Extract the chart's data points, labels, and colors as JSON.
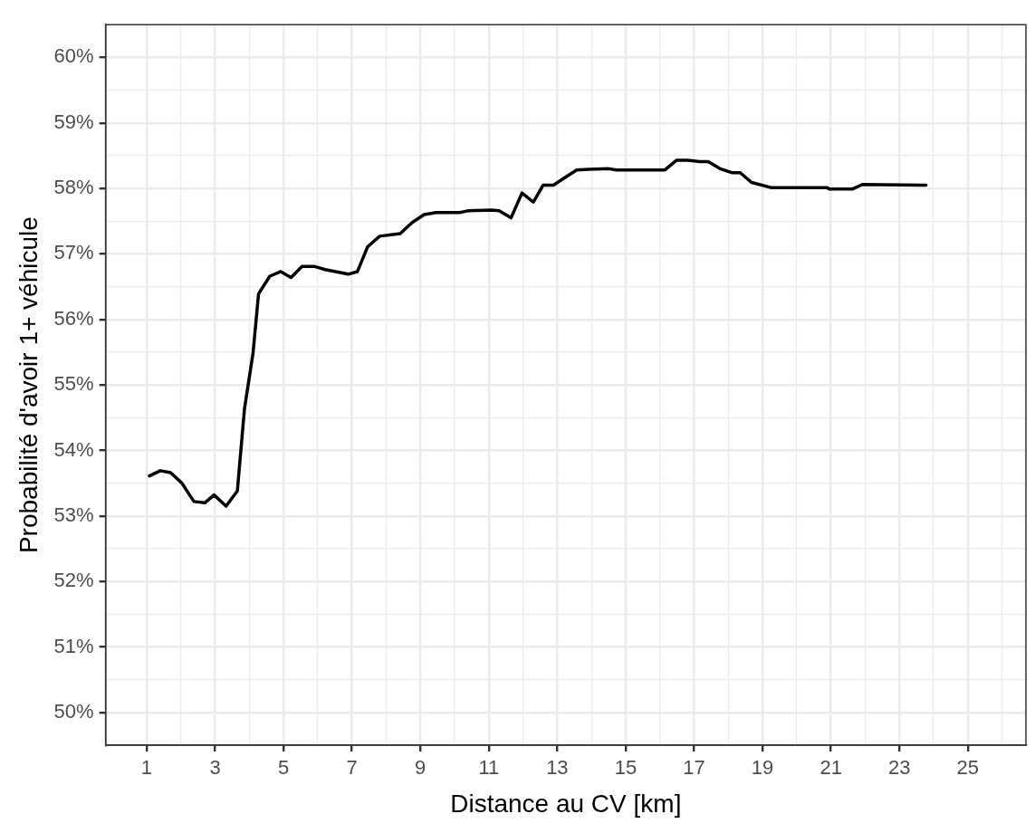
{
  "chart_data": {
    "type": "line",
    "xlabel": "Distance au CV [km]",
    "ylabel": "Probabilité d'avoir 1+ véhicule",
    "x": [
      1.08,
      1.4,
      1.7,
      2.03,
      2.38,
      2.7,
      2.97,
      3.32,
      3.65,
      3.86,
      4.11,
      4.27,
      4.6,
      4.92,
      5.22,
      5.54,
      5.89,
      6.22,
      6.89,
      7.16,
      7.46,
      7.81,
      8.41,
      8.76,
      9.11,
      9.46,
      10.14,
      10.41,
      11.08,
      11.3,
      11.65,
      11.97,
      12.3,
      12.59,
      12.89,
      13.24,
      13.57,
      13.92,
      14.51,
      14.73,
      16.14,
      16.49,
      16.81,
      17.16,
      17.41,
      17.76,
      18.1,
      18.35,
      18.68,
      19.27,
      20.89,
      20.95,
      21.62,
      21.92,
      23.78
    ],
    "series": [
      {
        "color": "#000000",
        "values": [
          53.61,
          53.69,
          53.66,
          53.5,
          53.22,
          53.2,
          53.32,
          53.15,
          53.38,
          54.64,
          55.49,
          56.39,
          56.66,
          56.73,
          56.64,
          56.81,
          56.81,
          56.76,
          56.69,
          56.73,
          57.11,
          57.27,
          57.31,
          57.48,
          57.6,
          57.63,
          57.63,
          57.66,
          57.67,
          57.66,
          57.55,
          57.93,
          57.79,
          58.05,
          58.05,
          58.17,
          58.28,
          58.29,
          58.3,
          58.28,
          58.28,
          58.43,
          58.43,
          58.41,
          58.41,
          58.3,
          58.24,
          58.24,
          58.09,
          58.01,
          58.01,
          57.99,
          57.99,
          58.06,
          58.05
        ]
      }
    ],
    "xlim": [
      -0.2,
      26.7
    ],
    "xticks": [
      1,
      {
        "value": 2,
        "label": null
      },
      3,
      {
        "value": 4,
        "label": null
      },
      5,
      {
        "value": 6,
        "label": null
      },
      7,
      {
        "value": 8,
        "label": null
      },
      9,
      {
        "value": 10,
        "label": null
      },
      11,
      {
        "value": 12,
        "label": null
      },
      13,
      {
        "value": 14,
        "label": null
      },
      15,
      {
        "value": 16,
        "label": null
      },
      17,
      {
        "value": 18,
        "label": null
      },
      19,
      {
        "value": 20,
        "label": null
      },
      21,
      {
        "value": 22,
        "label": null
      },
      23,
      {
        "value": 24,
        "label": null
      },
      25,
      {
        "value": 26,
        "label": null
      }
    ],
    "ylim": [
      49.5,
      60.5
    ],
    "yticks": [
      {
        "value": 50,
        "label": "50%"
      },
      {
        "value": 50.5,
        "label": null
      },
      {
        "value": 51,
        "label": "51%"
      },
      {
        "value": 51.5,
        "label": null
      },
      {
        "value": 52,
        "label": "52%"
      },
      {
        "value": 52.5,
        "label": null
      },
      {
        "value": 53,
        "label": "53%"
      },
      {
        "value": 53.5,
        "label": null
      },
      {
        "value": 54,
        "label": "54%"
      },
      {
        "value": 54.5,
        "label": null
      },
      {
        "value": 55,
        "label": "55%"
      },
      {
        "value": 55.5,
        "label": null
      },
      {
        "value": 56,
        "label": "56%"
      },
      {
        "value": 56.5,
        "label": null
      },
      {
        "value": 57,
        "label": "57%"
      },
      {
        "value": 57.5,
        "label": null
      },
      {
        "value": 58,
        "label": "58%"
      },
      {
        "value": 58.5,
        "label": null
      },
      {
        "value": 59,
        "label": "59%"
      },
      {
        "value": 59.5,
        "label": null
      },
      {
        "value": 60,
        "label": "60%"
      }
    ],
    "grid": true,
    "legend": false,
    "marker": "none",
    "line_style": "solid"
  }
}
